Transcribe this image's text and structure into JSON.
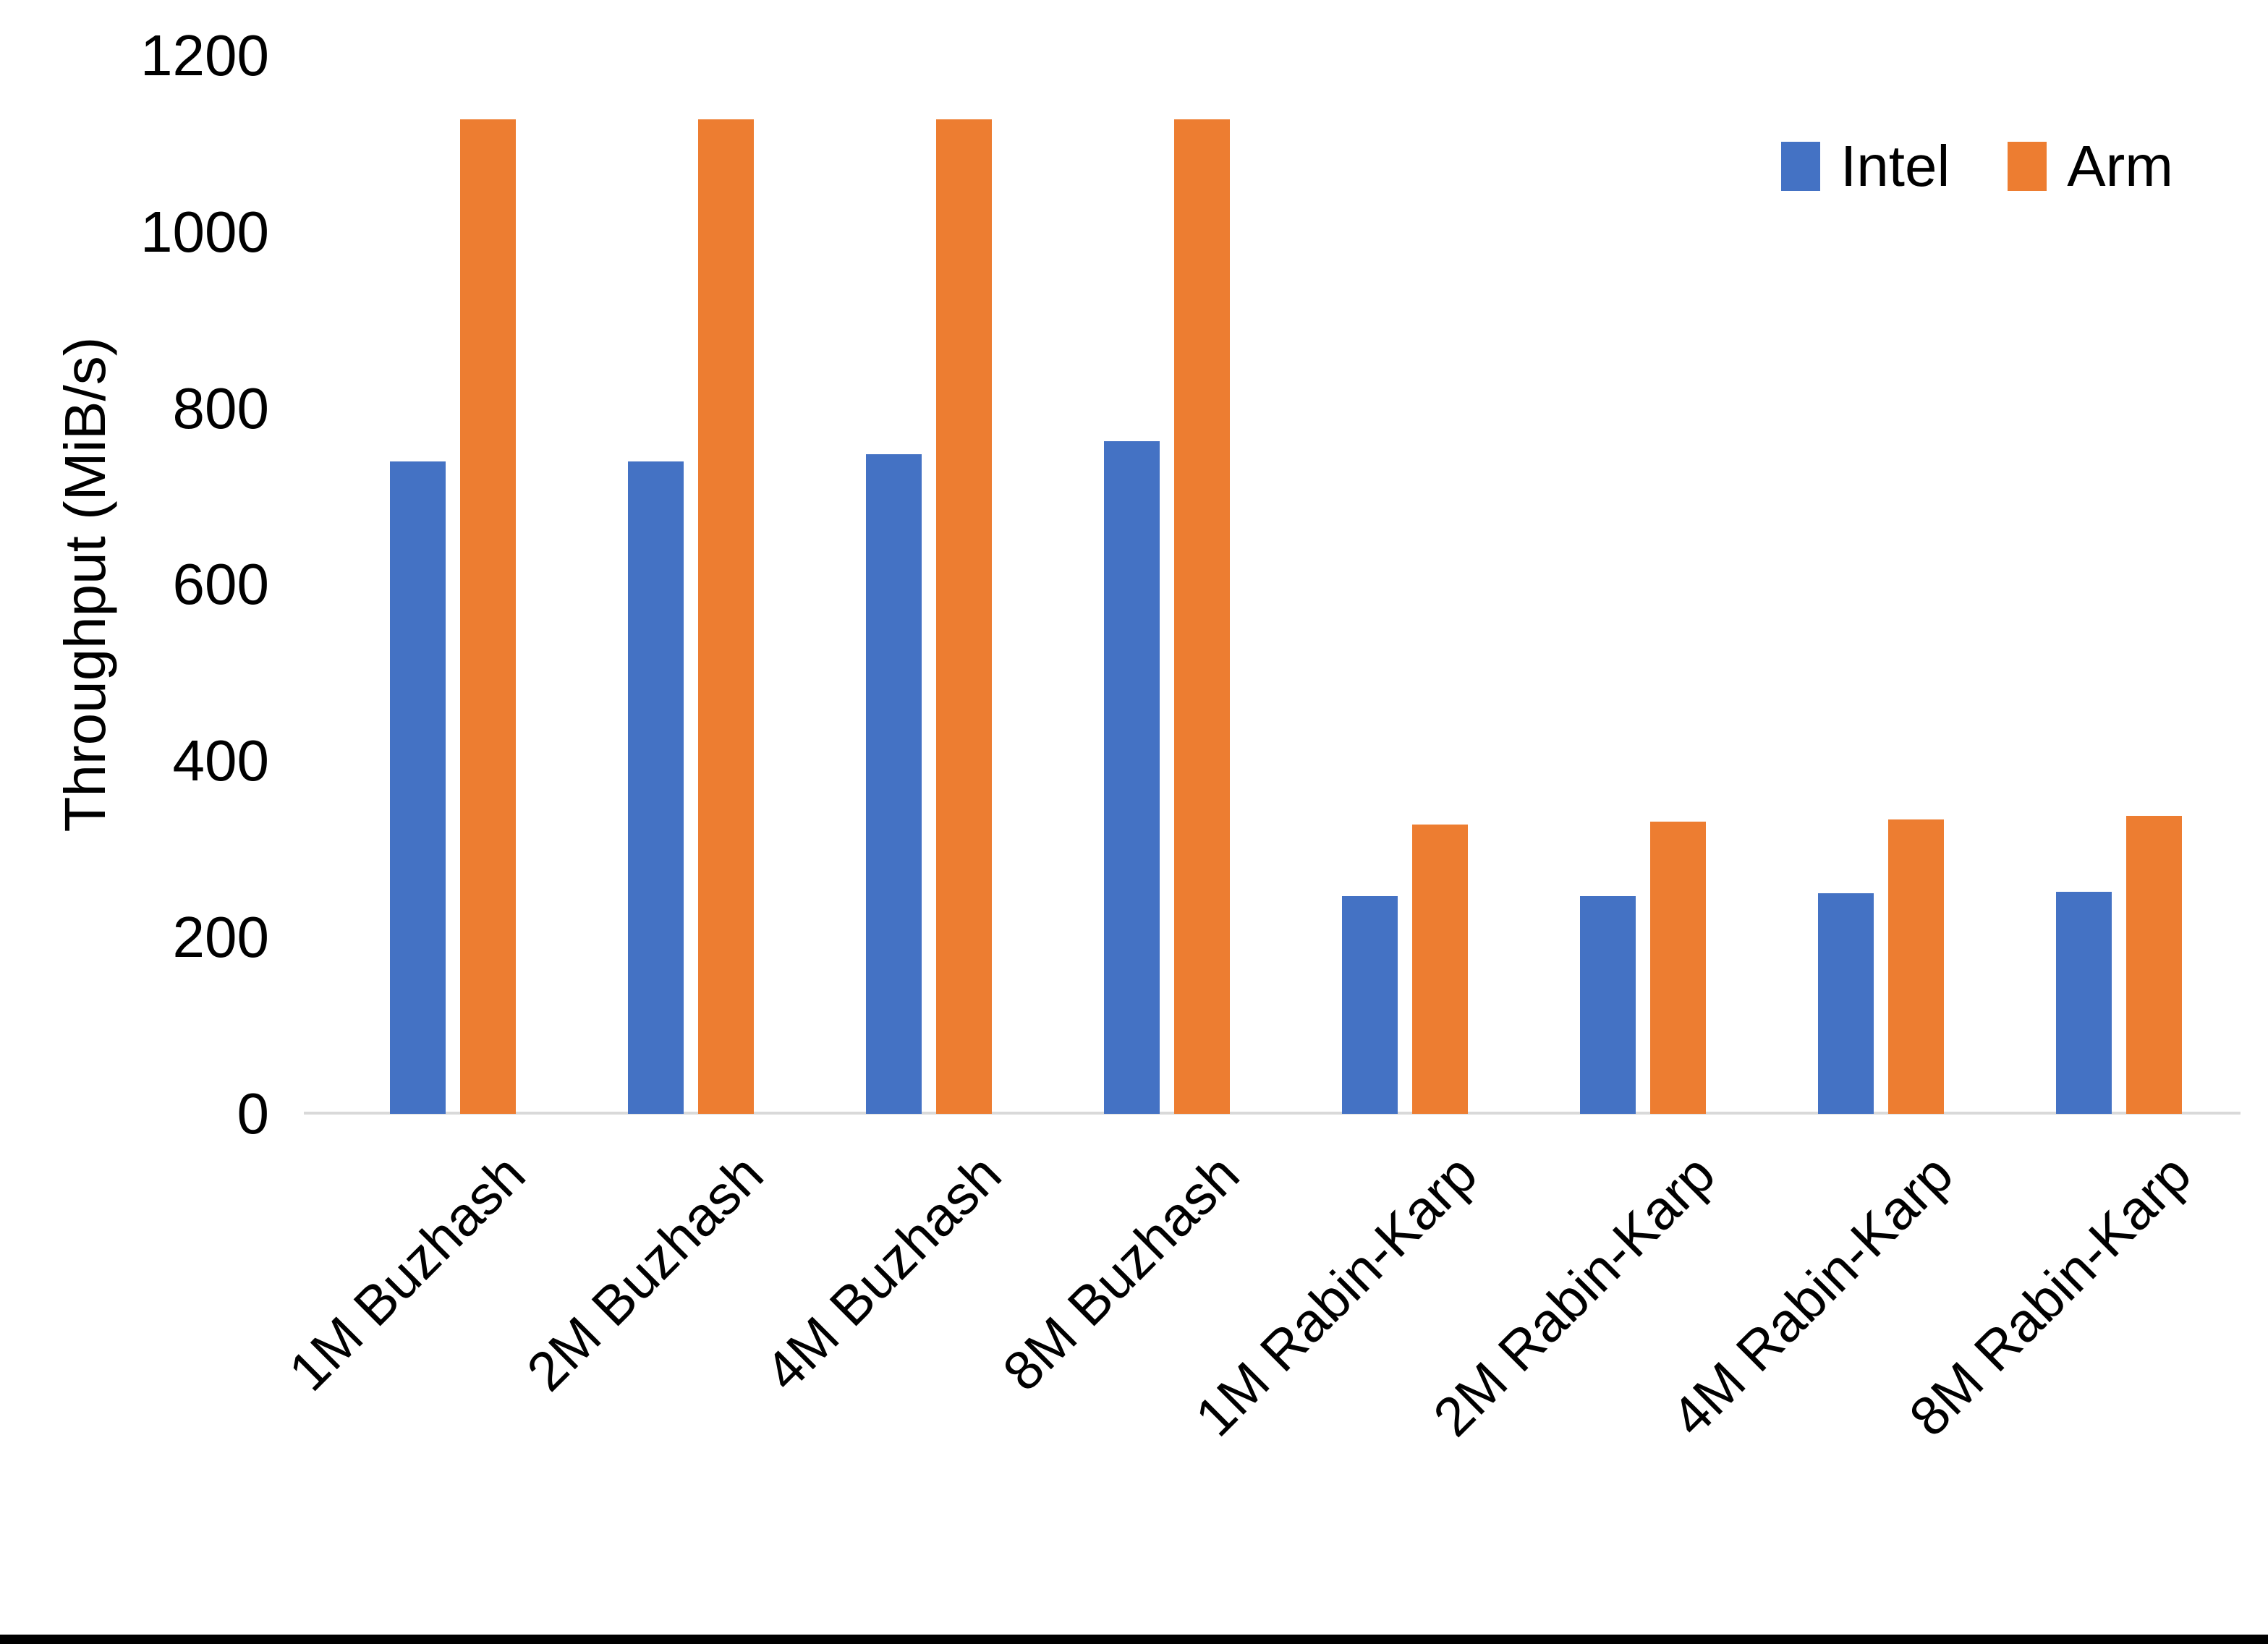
{
  "chart_data": {
    "type": "bar",
    "title": "",
    "xlabel": "",
    "ylabel": "Throughput (MiB/s)",
    "categories": [
      "1M Buzhash",
      "2M Buzhash",
      "4M Buzhash",
      "8M Buzhash",
      "1M Rabin-Karp",
      "2M Rabin-Karp",
      "4M Rabin-Karp",
      "8M Rabin-Karp"
    ],
    "series": [
      {
        "name": "Intel",
        "color": "#4472C4",
        "values": [
          740,
          740,
          748,
          763,
          247,
          247,
          250,
          252
        ]
      },
      {
        "name": "Arm",
        "color": "#ED7D31",
        "values": [
          1128,
          1128,
          1128,
          1128,
          328,
          331,
          334,
          338
        ]
      }
    ],
    "ylim": [
      0,
      1200
    ],
    "yticks": [
      0,
      200,
      400,
      600,
      800,
      1000,
      1200
    ],
    "grid": false,
    "legend_position": "top-right",
    "axis_line_color": "#D9D9D9",
    "text_color": "#000000",
    "background_color": "#FFFFFF"
  }
}
